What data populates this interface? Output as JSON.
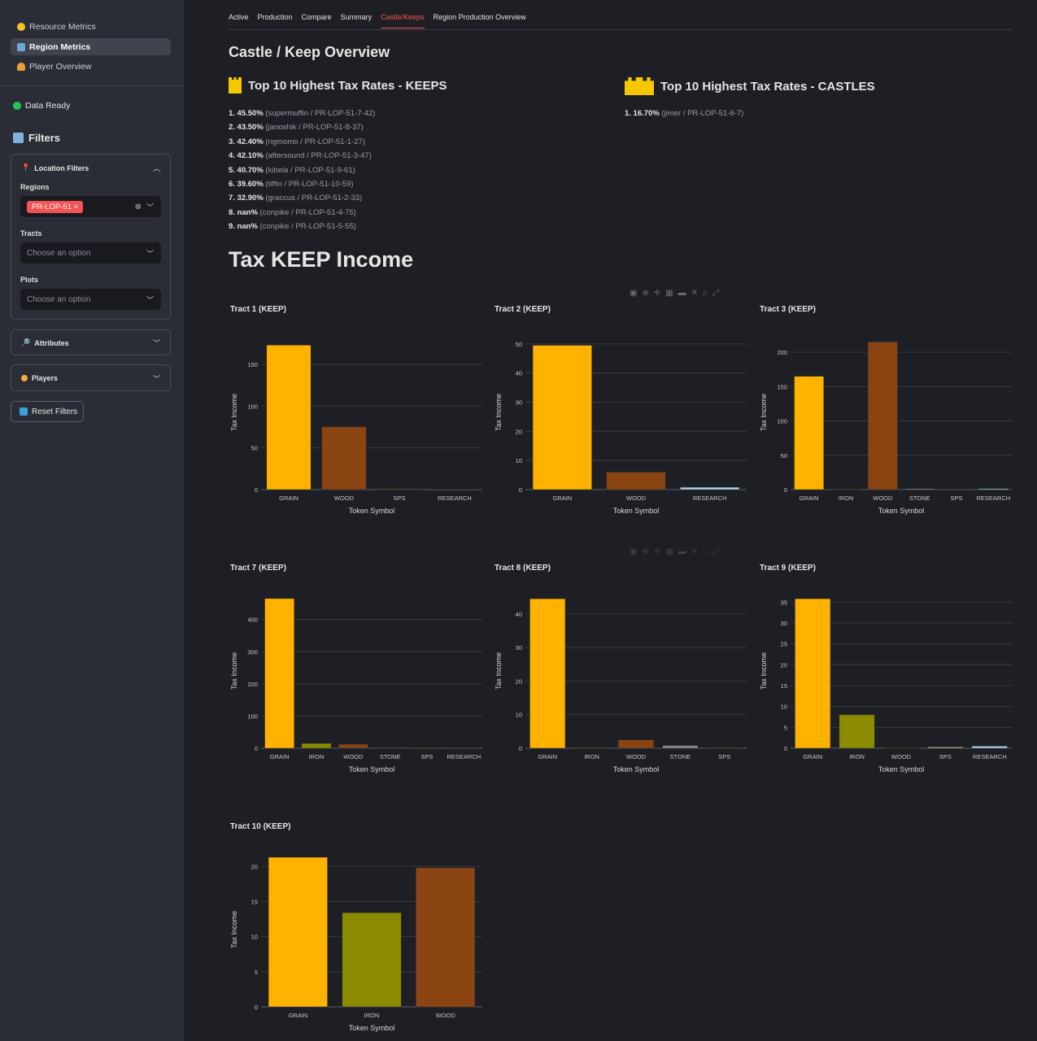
{
  "sidebar": {
    "nav": [
      {
        "label": "Resource Metrics",
        "icon": "yellow-circle-icon"
      },
      {
        "label": "Region Metrics",
        "icon": "bar-chart-icon",
        "active": true
      },
      {
        "label": "Player Overview",
        "icon": "people-icon"
      }
    ],
    "status": "Data Ready",
    "filters_title": "Filters",
    "location_filters": "Location Filters",
    "regions_label": "Regions",
    "region_tag": "PR-LOP-51",
    "tracts_label": "Tracts",
    "tracts_placeholder": "Choose an option",
    "plots_label": "Plots",
    "plots_placeholder": "Choose an option",
    "attributes": "Attributes",
    "players": "Players",
    "reset": "Reset Filters"
  },
  "tabs": [
    "Active",
    "Production",
    "Compare",
    "Summary",
    "Castle/Keeps",
    "Region Production Overview"
  ],
  "active_tab": "Castle/Keeps",
  "overview_title": "Castle / Keep Overview",
  "keeps_title": "Top 10 Highest Tax Rates - KEEPS",
  "castles_title": "Top 10 Highest Tax Rates - CASTLES",
  "keeps": [
    {
      "rank": "1.",
      "rate": "45.50%",
      "detail": "(supermuffin / PR-LOP-51-7-42)"
    },
    {
      "rank": "2.",
      "rate": "43.50%",
      "detail": "(janoshik / PR-LOP-51-8-37)"
    },
    {
      "rank": "3.",
      "rate": "42.40%",
      "detail": "(ngmomo / PR-LOP-51-1-27)"
    },
    {
      "rank": "4.",
      "rate": "42.10%",
      "detail": "(aftersound / PR-LOP-51-3-47)"
    },
    {
      "rank": "5.",
      "rate": "40.70%",
      "detail": "(kibela / PR-LOP-51-9-61)"
    },
    {
      "rank": "6.",
      "rate": "39.60%",
      "detail": "(tiffin / PR-LOP-51-10-59)"
    },
    {
      "rank": "7.",
      "rate": "32.90%",
      "detail": "(graccus / PR-LOP-51-2-33)"
    },
    {
      "rank": "8.",
      "rate": "nan%",
      "detail": "(conpike / PR-LOP-51-4-75)"
    },
    {
      "rank": "9.",
      "rate": "nan%",
      "detail": "(conpike / PR-LOP-51-5-55)"
    }
  ],
  "castles": [
    {
      "rank": "1.",
      "rate": "16.70%",
      "detail": "(jimer / PR-LOP-51-6-7)"
    }
  ],
  "income_title": "Tax KEEP Income",
  "colors": {
    "GRAIN": "#ffb300",
    "WOOD": "#8b4513",
    "IRON": "#8b8b00",
    "STONE": "#8a8a8a",
    "SPS": "#c0c080",
    "RESEARCH": "#add8e6"
  },
  "chart_data": [
    {
      "type": "bar",
      "title": "Tract 1 (KEEP)",
      "xlabel": "Token Symbol",
      "ylabel": "Tax Income",
      "categories": [
        "GRAIN",
        "WOOD",
        "SPS",
        "RESEARCH"
      ],
      "values": [
        173,
        75,
        0.5,
        0.3
      ],
      "ylim": [
        0,
        185
      ],
      "ticks": [
        0,
        50,
        100,
        150
      ]
    },
    {
      "type": "bar",
      "title": "Tract 2 (KEEP)",
      "xlabel": "Token Symbol",
      "ylabel": "Tax Income",
      "categories": [
        "GRAIN",
        "WOOD",
        "RESEARCH"
      ],
      "values": [
        49.5,
        6,
        0.8
      ],
      "ylim": [
        0,
        53
      ],
      "ticks": [
        0,
        10,
        20,
        30,
        40,
        50
      ]
    },
    {
      "type": "bar",
      "title": "Tract 3 (KEEP)",
      "xlabel": "Token Symbol",
      "ylabel": "Tax Income",
      "categories": [
        "GRAIN",
        "IRON",
        "WOOD",
        "STONE",
        "SPS",
        "RESEARCH"
      ],
      "values": [
        165,
        0.5,
        215,
        1.5,
        0.5,
        1.5
      ],
      "ylim": [
        0,
        225
      ],
      "ticks": [
        0,
        50,
        100,
        150,
        200
      ]
    },
    {
      "type": "bar",
      "title": "Tract 7 (KEEP)",
      "xlabel": "Token Symbol",
      "ylabel": "Tax Income",
      "categories": [
        "GRAIN",
        "IRON",
        "WOOD",
        "STONE",
        "SPS",
        "RESEARCH"
      ],
      "values": [
        465,
        15,
        12,
        2,
        1,
        1
      ],
      "ylim": [
        0,
        480
      ],
      "ticks": [
        0,
        100,
        200,
        300,
        400
      ]
    },
    {
      "type": "bar",
      "title": "Tract 8 (KEEP)",
      "xlabel": "Token Symbol",
      "ylabel": "Tax Income",
      "categories": [
        "GRAIN",
        "IRON",
        "WOOD",
        "STONE",
        "SPS"
      ],
      "values": [
        44.5,
        0.2,
        2.5,
        0.8,
        0.1
      ],
      "ylim": [
        0,
        46
      ],
      "ticks": [
        0,
        10,
        20,
        30,
        40
      ]
    },
    {
      "type": "bar",
      "title": "Tract 9 (KEEP)",
      "xlabel": "Token Symbol",
      "ylabel": "Tax Income",
      "categories": [
        "GRAIN",
        "IRON",
        "WOOD",
        "SPS",
        "RESEARCH"
      ],
      "values": [
        35.8,
        8,
        0.1,
        0.3,
        0.5
      ],
      "ylim": [
        0,
        37
      ],
      "ticks": [
        0,
        5,
        10,
        15,
        20,
        25,
        30,
        35
      ]
    },
    {
      "type": "bar",
      "title": "Tract 10 (KEEP)",
      "xlabel": "Token Symbol",
      "ylabel": "Tax Income",
      "categories": [
        "GRAIN",
        "IRON",
        "WOOD"
      ],
      "values": [
        21.3,
        13.4,
        19.8
      ],
      "ylim": [
        0,
        22
      ],
      "ticks": [
        0,
        5,
        10,
        15,
        20
      ]
    }
  ]
}
